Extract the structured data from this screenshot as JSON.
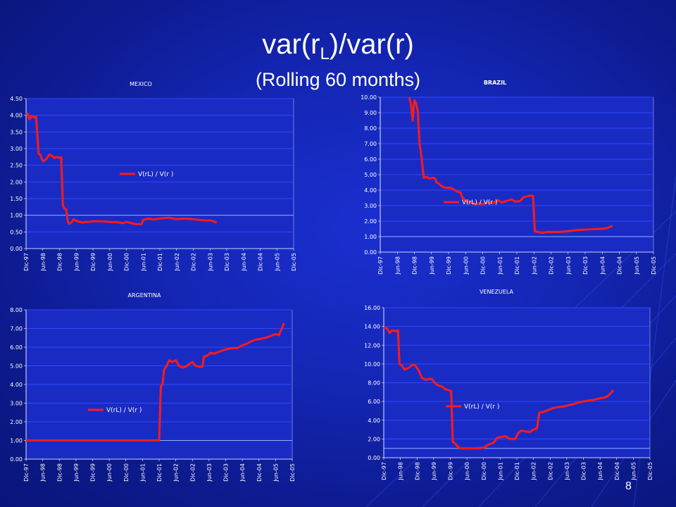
{
  "slide": {
    "title_main": "var(r",
    "title_sub": "L",
    "title_end": ")/var(r)",
    "subtitle": "(Rolling 60 months)",
    "page_number": "8"
  },
  "colors": {
    "background": "#1426b4",
    "plot_area": "#1a2bc4",
    "gridline": "#2f48ff",
    "series_line": "#ff1a1a",
    "reference_line": "#8fb0ff",
    "text": "#ffffff"
  },
  "chart_data": [
    {
      "id": "mexico",
      "type": "line",
      "title": "MEXICO",
      "ylim": [
        0,
        4.5
      ],
      "yticks": [
        "0.00",
        "0.50",
        "1.00",
        "1.50",
        "2.00",
        "2.50",
        "3.00",
        "3.50",
        "4.00",
        "4.50"
      ],
      "categories": [
        "Dic-97",
        "Jun-98",
        "Dic-98",
        "Jun-99",
        "Dic-99",
        "Jun-00",
        "Dic-00",
        "Jun-01",
        "Dic-01",
        "Jun-02",
        "Dic-02",
        "Jun-03",
        "Dic-03",
        "Jun-04",
        "Dic-04",
        "Jun-05",
        "Dic-05"
      ],
      "reference_line": 1.0,
      "legend_position": "center-right",
      "series": [
        {
          "name": "V(rL) / V(r )",
          "points": [
            [
              0,
              4.02
            ],
            [
              0.1,
              4.05
            ],
            [
              0.2,
              3.88
            ],
            [
              0.35,
              3.98
            ],
            [
              0.5,
              3.93
            ],
            [
              0.6,
              3.96
            ],
            [
              0.75,
              2.85
            ],
            [
              0.85,
              2.82
            ],
            [
              0.95,
              2.68
            ],
            [
              1.05,
              2.62
            ],
            [
              1.2,
              2.68
            ],
            [
              1.4,
              2.82
            ],
            [
              1.55,
              2.78
            ],
            [
              1.7,
              2.72
            ],
            [
              1.85,
              2.75
            ],
            [
              2.0,
              2.72
            ],
            [
              2.1,
              2.74
            ],
            [
              2.2,
              1.3
            ],
            [
              2.3,
              1.2
            ],
            [
              2.4,
              1.18
            ],
            [
              2.5,
              0.8
            ],
            [
              2.55,
              0.75
            ],
            [
              2.65,
              0.76
            ],
            [
              2.75,
              0.8
            ],
            [
              2.85,
              0.88
            ],
            [
              3.0,
              0.83
            ],
            [
              3.2,
              0.8
            ],
            [
              3.4,
              0.78
            ],
            [
              3.6,
              0.8
            ],
            [
              3.8,
              0.8
            ],
            [
              4.0,
              0.82
            ],
            [
              4.5,
              0.82
            ],
            [
              5.0,
              0.8
            ],
            [
              5.5,
              0.79
            ],
            [
              5.8,
              0.76
            ],
            [
              6.0,
              0.8
            ],
            [
              6.3,
              0.76
            ],
            [
              6.6,
              0.73
            ],
            [
              6.9,
              0.73
            ],
            [
              7.0,
              0.86
            ],
            [
              7.3,
              0.9
            ],
            [
              7.6,
              0.87
            ],
            [
              8.0,
              0.9
            ],
            [
              8.5,
              0.93
            ],
            [
              9.0,
              0.88
            ],
            [
              9.5,
              0.9
            ],
            [
              10.0,
              0.88
            ],
            [
              10.5,
              0.85
            ],
            [
              10.8,
              0.84
            ],
            [
              11.0,
              0.85
            ],
            [
              11.2,
              0.82
            ],
            [
              11.4,
              0.78
            ]
          ]
        }
      ]
    },
    {
      "id": "brazil",
      "type": "line",
      "title": "BRAZIL",
      "ylim": [
        0,
        10
      ],
      "yticks": [
        "0.00",
        "1.00",
        "2.00",
        "3.00",
        "4.00",
        "5.00",
        "6.00",
        "7.00",
        "8.00",
        "9.00",
        "10.00"
      ],
      "categories": [
        "Dic-97",
        "Jun-98",
        "Dic-98",
        "Jun-99",
        "Dic-99",
        "Jun-00",
        "Dic-00",
        "Jun-01",
        "Dic-01",
        "Jun-02",
        "Dic-02",
        "Jun-03",
        "Dic-03",
        "Jun-04",
        "Dic-04",
        "Jun-05",
        "Dic-05"
      ],
      "reference_line": 1.0,
      "legend_position": "center-right",
      "series": [
        {
          "name": "V(rL) / V(r )",
          "points": [
            [
              1.7,
              10.0
            ],
            [
              1.8,
              9.5
            ],
            [
              1.9,
              8.5
            ],
            [
              2.0,
              9.8
            ],
            [
              2.1,
              9.6
            ],
            [
              2.2,
              9.1
            ],
            [
              2.3,
              7.0
            ],
            [
              2.4,
              6.3
            ],
            [
              2.55,
              4.8
            ],
            [
              2.7,
              4.85
            ],
            [
              2.9,
              4.75
            ],
            [
              3.1,
              4.8
            ],
            [
              3.2,
              4.75
            ],
            [
              3.3,
              4.5
            ],
            [
              3.45,
              4.4
            ],
            [
              3.6,
              4.25
            ],
            [
              3.8,
              4.15
            ],
            [
              4.1,
              4.15
            ],
            [
              4.3,
              4.05
            ],
            [
              4.5,
              3.9
            ],
            [
              4.7,
              3.85
            ],
            [
              4.8,
              3.55
            ],
            [
              5.0,
              3.3
            ],
            [
              5.3,
              3.2
            ],
            [
              5.6,
              3.1
            ],
            [
              5.8,
              3.15
            ],
            [
              6.0,
              3.1
            ],
            [
              6.3,
              3.2
            ],
            [
              6.6,
              3.15
            ],
            [
              6.9,
              3.35
            ],
            [
              7.1,
              3.2
            ],
            [
              7.4,
              3.3
            ],
            [
              7.7,
              3.4
            ],
            [
              7.9,
              3.25
            ],
            [
              8.2,
              3.3
            ],
            [
              8.4,
              3.55
            ],
            [
              8.6,
              3.6
            ],
            [
              8.8,
              3.65
            ],
            [
              8.95,
              3.62
            ],
            [
              9.05,
              1.35
            ],
            [
              9.2,
              1.3
            ],
            [
              9.5,
              1.25
            ],
            [
              9.8,
              1.3
            ],
            [
              10.5,
              1.3
            ],
            [
              11.0,
              1.35
            ],
            [
              11.5,
              1.42
            ],
            [
              12.0,
              1.45
            ],
            [
              12.5,
              1.48
            ],
            [
              13.0,
              1.5
            ],
            [
              13.3,
              1.55
            ],
            [
              13.6,
              1.7
            ]
          ]
        }
      ]
    },
    {
      "id": "argentina",
      "type": "line",
      "title": "ARGENTINA",
      "ylim": [
        0,
        8
      ],
      "yticks": [
        "0.00",
        "1.00",
        "2.00",
        "3.00",
        "4.00",
        "5.00",
        "6.00",
        "7.00",
        "8.00"
      ],
      "categories": [
        "Dic-97",
        "Jun-98",
        "Dic-98",
        "Jun-99",
        "Dic-99",
        "Jun-00",
        "Dic-00",
        "Jun-01",
        "Dic-01",
        "Jun-02",
        "Dic-02",
        "Jun-03",
        "Dic-03",
        "Jun-04",
        "Dic-04",
        "Jun-05",
        "Dic-05"
      ],
      "reference_line": 1.0,
      "legend_position": "center-left",
      "series": [
        {
          "name": "V(rL) / V(r )",
          "points": [
            [
              0,
              1.0
            ],
            [
              7.85,
              1.0
            ],
            [
              8.0,
              1.0
            ],
            [
              8.1,
              3.9
            ],
            [
              8.2,
              4.0
            ],
            [
              8.3,
              4.8
            ],
            [
              8.45,
              5.0
            ],
            [
              8.6,
              5.3
            ],
            [
              8.8,
              5.2
            ],
            [
              9.0,
              5.3
            ],
            [
              9.2,
              5.0
            ],
            [
              9.4,
              4.9
            ],
            [
              9.6,
              4.95
            ],
            [
              9.8,
              5.1
            ],
            [
              10.0,
              5.2
            ],
            [
              10.2,
              5.0
            ],
            [
              10.4,
              4.95
            ],
            [
              10.6,
              4.95
            ],
            [
              10.7,
              5.5
            ],
            [
              10.9,
              5.55
            ],
            [
              11.1,
              5.7
            ],
            [
              11.3,
              5.65
            ],
            [
              11.6,
              5.75
            ],
            [
              11.9,
              5.85
            ],
            [
              12.1,
              5.9
            ],
            [
              12.4,
              5.95
            ],
            [
              12.7,
              5.95
            ],
            [
              13.0,
              6.1
            ],
            [
              13.3,
              6.2
            ],
            [
              13.5,
              6.3
            ],
            [
              13.8,
              6.4
            ],
            [
              14.1,
              6.45
            ],
            [
              14.4,
              6.5
            ],
            [
              14.7,
              6.6
            ],
            [
              15.0,
              6.7
            ],
            [
              15.2,
              6.65
            ],
            [
              15.4,
              7.05
            ],
            [
              15.5,
              7.3
            ]
          ]
        }
      ]
    },
    {
      "id": "venezuela",
      "type": "line",
      "title": "VENEZUELA",
      "ylim": [
        0,
        16
      ],
      "yticks": [
        "0.00",
        "2.00",
        "4.00",
        "6.00",
        "8.00",
        "10.00",
        "12.00",
        "14.00",
        "16.00"
      ],
      "categories": [
        "Dic-97",
        "Jun-98",
        "Dic-98",
        "Jun-99",
        "Dic-99",
        "Jun-00",
        "Dic-00",
        "Jun-01",
        "Dic-01",
        "Jun-02",
        "Dic-02",
        "Jun-03",
        "Dic-03",
        "Jun-04",
        "Dic-04",
        "Jun-05",
        "Dic-05"
      ],
      "reference_line": 1.0,
      "legend_position": "center-left",
      "series": [
        {
          "name": "V(rL) / V(r )",
          "points": [
            [
              0,
              13.9
            ],
            [
              0.2,
              13.8
            ],
            [
              0.35,
              13.3
            ],
            [
              0.5,
              13.6
            ],
            [
              0.7,
              13.5
            ],
            [
              0.85,
              13.6
            ],
            [
              0.95,
              10.0
            ],
            [
              1.1,
              9.8
            ],
            [
              1.25,
              9.4
            ],
            [
              1.5,
              9.6
            ],
            [
              1.7,
              9.9
            ],
            [
              1.9,
              9.85
            ],
            [
              2.1,
              9.3
            ],
            [
              2.3,
              8.5
            ],
            [
              2.5,
              8.3
            ],
            [
              2.7,
              8.4
            ],
            [
              2.9,
              8.4
            ],
            [
              3.1,
              7.9
            ],
            [
              3.3,
              7.7
            ],
            [
              3.5,
              7.6
            ],
            [
              3.7,
              7.3
            ],
            [
              3.9,
              7.2
            ],
            [
              4.05,
              7.1
            ],
            [
              4.15,
              1.7
            ],
            [
              4.3,
              1.5
            ],
            [
              4.45,
              1.2
            ],
            [
              4.6,
              1.0
            ],
            [
              5.0,
              1.0
            ],
            [
              5.5,
              1.0
            ],
            [
              6.0,
              1.05
            ],
            [
              6.3,
              1.4
            ],
            [
              6.6,
              1.6
            ],
            [
              6.8,
              2.1
            ],
            [
              7.0,
              2.2
            ],
            [
              7.3,
              2.3
            ],
            [
              7.6,
              2.0
            ],
            [
              7.9,
              2.0
            ],
            [
              8.1,
              2.7
            ],
            [
              8.3,
              2.9
            ],
            [
              8.5,
              2.8
            ],
            [
              8.8,
              2.75
            ],
            [
              9.0,
              3.0
            ],
            [
              9.2,
              3.1
            ],
            [
              9.35,
              4.8
            ],
            [
              9.6,
              4.9
            ],
            [
              9.9,
              5.1
            ],
            [
              10.2,
              5.3
            ],
            [
              10.5,
              5.4
            ],
            [
              10.8,
              5.45
            ],
            [
              11.1,
              5.6
            ],
            [
              11.4,
              5.7
            ],
            [
              11.7,
              5.9
            ],
            [
              12.0,
              6.0
            ],
            [
              12.3,
              6.1
            ],
            [
              12.6,
              6.15
            ],
            [
              12.9,
              6.3
            ],
            [
              13.2,
              6.4
            ],
            [
              13.4,
              6.5
            ],
            [
              13.6,
              6.8
            ],
            [
              13.8,
              7.2
            ]
          ]
        }
      ]
    }
  ]
}
